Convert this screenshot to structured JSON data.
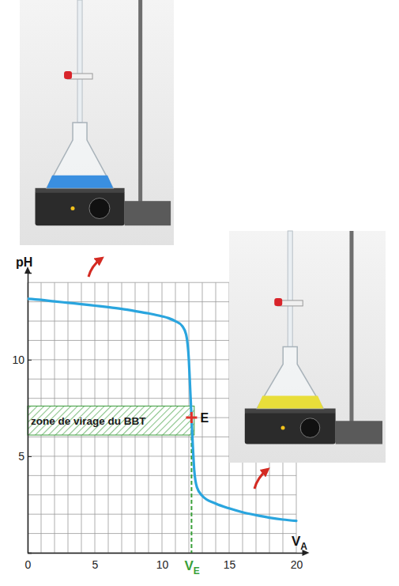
{
  "chart_data": {
    "type": "line",
    "y_label": "pH",
    "x_label": {
      "text": "V",
      "sub": "A"
    },
    "x": [
      0,
      1,
      2,
      3,
      4,
      5,
      6,
      7,
      8,
      9,
      10,
      10.5,
      11,
      11.5,
      11.8,
      12.0,
      12.1,
      12.2,
      12.3,
      12.4,
      12.6,
      13,
      14,
      15,
      16,
      17,
      18,
      19,
      20
    ],
    "values": [
      13.15,
      13.1,
      13.02,
      12.95,
      12.88,
      12.8,
      12.72,
      12.63,
      12.52,
      12.4,
      12.25,
      12.15,
      12.0,
      11.75,
      11.3,
      10.0,
      8.5,
      7.0,
      5.5,
      4.3,
      3.4,
      2.95,
      2.55,
      2.3,
      2.1,
      1.95,
      1.82,
      1.72,
      1.65
    ],
    "color": "#2aa5de",
    "xlim": [
      0,
      20.5
    ],
    "ylim": [
      0,
      14.5
    ],
    "xticks": [
      0,
      5,
      10,
      15,
      20
    ],
    "yticks": [
      5,
      10
    ],
    "grid": true,
    "x_gridlines": [
      0,
      1,
      2,
      3,
      4,
      5,
      6,
      7,
      8,
      9,
      10,
      11,
      12,
      13,
      14,
      15,
      16,
      17,
      18,
      19,
      20
    ],
    "y_gridlines": [
      0,
      1,
      2,
      3,
      4,
      5,
      6,
      7,
      8,
      9,
      10,
      11,
      12,
      13,
      14
    ],
    "zone": {
      "label": "zone de virage du BBT",
      "ymin": 6.1,
      "ymax": 7.6,
      "xmax": 12.4,
      "color": "#3a9a3a"
    },
    "equivalence": {
      "label": "E",
      "x": 12.2,
      "y": 7.0,
      "color": "#e0322a",
      "x_label": {
        "text": "V",
        "sub": "E"
      },
      "x_label_color": "#3aa03a"
    }
  }
}
